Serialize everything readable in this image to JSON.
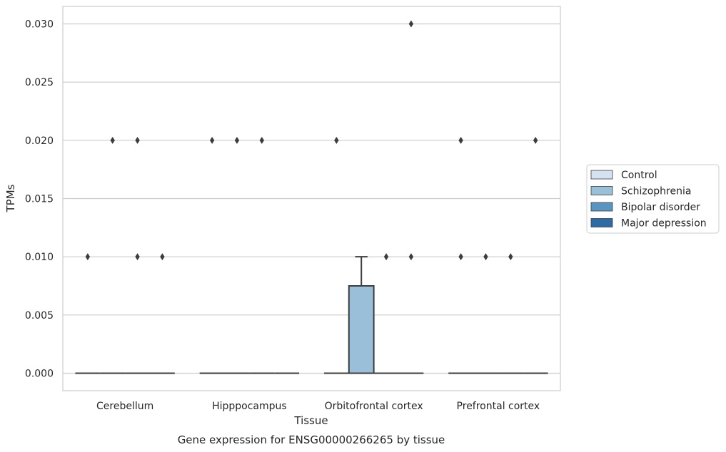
{
  "chart_data": {
    "type": "box",
    "title": "",
    "caption": "Gene expression for ENSG00000266265 by tissue",
    "xlabel": "Tissue",
    "ylabel": "TPMs",
    "ylim": [
      -0.0015,
      0.0315
    ],
    "yticks": [
      "0.000",
      "0.005",
      "0.010",
      "0.015",
      "0.020",
      "0.025",
      "0.030"
    ],
    "ytick_values": [
      0,
      0.005,
      0.01,
      0.015,
      0.02,
      0.025,
      0.03
    ],
    "grid": "horizontal",
    "legend_position": "right",
    "categories": [
      "Cerebellum",
      "Hipppocampus",
      "Orbitofrontal cortex",
      "Prefrontal cortex"
    ],
    "series": [
      {
        "name": "Control",
        "color": "#d4e3f1",
        "boxes": [
          {
            "q1": 0,
            "median": 0,
            "q3": 0,
            "whisker_low": 0,
            "whisker_high": 0,
            "outliers": [
              0.01
            ]
          },
          {
            "q1": 0,
            "median": 0,
            "q3": 0,
            "whisker_low": 0,
            "whisker_high": 0,
            "outliers": [
              0.02
            ]
          },
          {
            "q1": 0,
            "median": 0,
            "q3": 0,
            "whisker_low": 0,
            "whisker_high": 0,
            "outliers": [
              0.02
            ]
          },
          {
            "q1": 0,
            "median": 0,
            "q3": 0,
            "whisker_low": 0,
            "whisker_high": 0,
            "outliers": [
              0.02,
              0.01
            ]
          }
        ]
      },
      {
        "name": "Schizophrenia",
        "color": "#9ac0d9",
        "boxes": [
          {
            "q1": 0,
            "median": 0,
            "q3": 0,
            "whisker_low": 0,
            "whisker_high": 0,
            "outliers": [
              0.02
            ]
          },
          {
            "q1": 0,
            "median": 0,
            "q3": 0,
            "whisker_low": 0,
            "whisker_high": 0,
            "outliers": [
              0.02
            ]
          },
          {
            "q1": 0,
            "median": 0,
            "q3": 0.0075,
            "whisker_low": 0,
            "whisker_high": 0.01,
            "outliers": []
          },
          {
            "q1": 0,
            "median": 0,
            "q3": 0,
            "whisker_low": 0,
            "whisker_high": 0,
            "outliers": [
              0.01
            ]
          }
        ]
      },
      {
        "name": "Bipolar disorder",
        "color": "#5895c1",
        "boxes": [
          {
            "q1": 0,
            "median": 0,
            "q3": 0,
            "whisker_low": 0,
            "whisker_high": 0,
            "outliers": [
              0.02,
              0.01
            ]
          },
          {
            "q1": 0,
            "median": 0,
            "q3": 0,
            "whisker_low": 0,
            "whisker_high": 0,
            "outliers": [
              0.02
            ]
          },
          {
            "q1": 0,
            "median": 0,
            "q3": 0,
            "whisker_low": 0,
            "whisker_high": 0,
            "outliers": [
              0.01
            ]
          },
          {
            "q1": 0,
            "median": 0,
            "q3": 0,
            "whisker_low": 0,
            "whisker_high": 0,
            "outliers": [
              0.01
            ]
          }
        ]
      },
      {
        "name": "Major depression",
        "color": "#2e6aa6",
        "boxes": [
          {
            "q1": 0,
            "median": 0,
            "q3": 0,
            "whisker_low": 0,
            "whisker_high": 0,
            "outliers": [
              0.01
            ]
          },
          {
            "q1": 0,
            "median": 0,
            "q3": 0,
            "whisker_low": 0,
            "whisker_high": 0,
            "outliers": []
          },
          {
            "q1": 0,
            "median": 0,
            "q3": 0,
            "whisker_low": 0,
            "whisker_high": 0,
            "outliers": [
              0.03,
              0.01
            ]
          },
          {
            "q1": 0,
            "median": 0,
            "q3": 0,
            "whisker_low": 0,
            "whisker_high": 0,
            "outliers": [
              0.02
            ]
          }
        ]
      }
    ]
  }
}
